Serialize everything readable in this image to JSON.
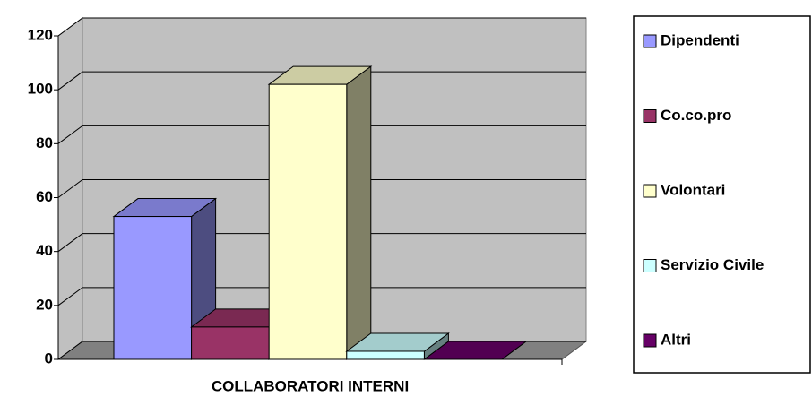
{
  "chart_data": {
    "type": "bar3d",
    "categories": [
      "COLLABORATORI INTERNI"
    ],
    "series": [
      {
        "name": "Dipendenti",
        "color": "#9999ff",
        "values": [
          53
        ]
      },
      {
        "name": "Co.co.pro",
        "color": "#993366",
        "values": [
          12
        ]
      },
      {
        "name": "Volontari",
        "color": "#ffffcc",
        "values": [
          102
        ]
      },
      {
        "name": "Servizio Civile",
        "color": "#ccffff",
        "values": [
          3
        ]
      },
      {
        "name": "Altri",
        "color": "#660066",
        "values": [
          0
        ]
      }
    ],
    "ylim": [
      0,
      120
    ],
    "yticks": [
      0,
      20,
      40,
      60,
      80,
      100,
      120
    ],
    "grid": true,
    "legend": "right"
  }
}
